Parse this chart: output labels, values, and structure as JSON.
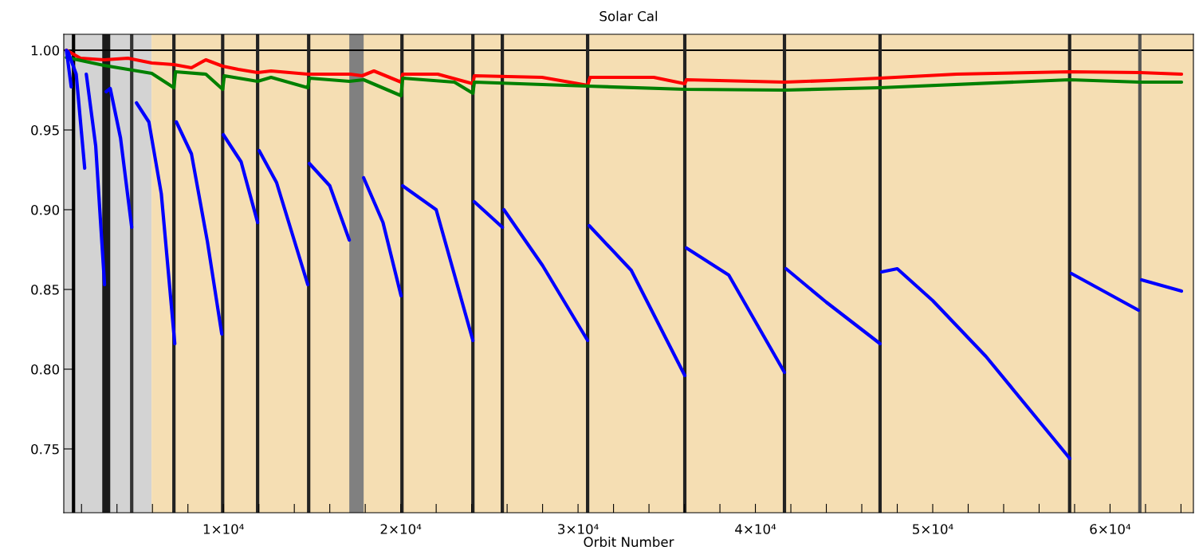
{
  "chart_data": {
    "type": "line",
    "title": "Solar Cal",
    "xlabel": "Orbit Number",
    "xlim": [
      1000,
      64700
    ],
    "ylim": [
      0.71,
      1.01
    ],
    "xticks": [
      {
        "value": 2000,
        "label": null
      },
      {
        "value": 4000,
        "label": null
      },
      {
        "value": 6000,
        "label": null
      },
      {
        "value": 8000,
        "label": null
      },
      {
        "value": 10000,
        "label": "1×10⁴"
      },
      {
        "value": 12000,
        "label": null
      },
      {
        "value": 14000,
        "label": null
      },
      {
        "value": 16000,
        "label": null
      },
      {
        "value": 18000,
        "label": null
      },
      {
        "value": 20000,
        "label": "2×10⁴"
      },
      {
        "value": 22000,
        "label": null
      },
      {
        "value": 24000,
        "label": null
      },
      {
        "value": 26000,
        "label": null
      },
      {
        "value": 28000,
        "label": null
      },
      {
        "value": 30000,
        "label": "3×10⁴"
      },
      {
        "value": 32000,
        "label": null
      },
      {
        "value": 34000,
        "label": null
      },
      {
        "value": 36000,
        "label": null
      },
      {
        "value": 38000,
        "label": null
      },
      {
        "value": 40000,
        "label": "4×10⁴"
      },
      {
        "value": 42000,
        "label": null
      },
      {
        "value": 44000,
        "label": null
      },
      {
        "value": 46000,
        "label": null
      },
      {
        "value": 48000,
        "label": null
      },
      {
        "value": 50000,
        "label": "5×10⁴"
      },
      {
        "value": 52000,
        "label": null
      },
      {
        "value": 54000,
        "label": null
      },
      {
        "value": 56000,
        "label": null
      },
      {
        "value": 58000,
        "label": null
      },
      {
        "value": 60000,
        "label": "6×10⁴"
      },
      {
        "value": 62000,
        "label": null
      },
      {
        "value": 64000,
        "label": null
      }
    ],
    "yticks": [
      {
        "value": 0.75,
        "label": "0.75"
      },
      {
        "value": 0.8,
        "label": "0.80"
      },
      {
        "value": 0.85,
        "label": "0.85"
      },
      {
        "value": 0.9,
        "label": "0.90"
      },
      {
        "value": 0.95,
        "label": "0.95"
      },
      {
        "value": 1.0,
        "label": "1.00"
      }
    ],
    "grid": false,
    "legend": false,
    "bands": [
      {
        "axis": "x",
        "from": 1000,
        "to": 5950,
        "color": "#d3d3d3"
      },
      {
        "axis": "x",
        "from": 5950,
        "to": 64700,
        "color": "#f5deb3"
      },
      {
        "axis": "x",
        "from": 3170,
        "to": 3620,
        "color": "#1a1a1a"
      },
      {
        "axis": "x",
        "from": 17100,
        "to": 17910,
        "color": "#808080"
      }
    ],
    "ref_lines": [
      {
        "axis": "y",
        "value": 1.0,
        "color": "#000000"
      },
      {
        "axis": "x",
        "value": 1550,
        "color": "#000000"
      },
      {
        "axis": "x",
        "value": 4830,
        "color": "#333333"
      },
      {
        "axis": "x",
        "value": 7210,
        "color": "#222222"
      },
      {
        "axis": "x",
        "value": 9960,
        "color": "#222222"
      },
      {
        "axis": "x",
        "value": 11930,
        "color": "#222222"
      },
      {
        "axis": "x",
        "value": 14810,
        "color": "#222222"
      },
      {
        "axis": "x",
        "value": 20070,
        "color": "#222222"
      },
      {
        "axis": "x",
        "value": 24070,
        "color": "#222222"
      },
      {
        "axis": "x",
        "value": 25730,
        "color": "#222222"
      },
      {
        "axis": "x",
        "value": 30540,
        "color": "#222222"
      },
      {
        "axis": "x",
        "value": 36020,
        "color": "#222222"
      },
      {
        "axis": "x",
        "value": 41640,
        "color": "#222222"
      },
      {
        "axis": "x",
        "value": 47030,
        "color": "#222222"
      },
      {
        "axis": "x",
        "value": 57720,
        "color": "#222222"
      },
      {
        "axis": "x",
        "value": 61680,
        "color": "#555555"
      }
    ],
    "series": [
      {
        "color": "#ff0000",
        "x": [
          1150,
          1940,
          3280,
          4620,
          5960,
          7210,
          8200,
          9010,
          9960,
          10840,
          11930,
          12690,
          14760,
          17150,
          17820,
          18490,
          20020,
          20110,
          22090,
          24070,
          24150,
          27970,
          30540,
          30680,
          34270,
          36020,
          36110,
          41640,
          44160,
          47030,
          51340,
          57720,
          61680,
          64030
        ],
        "values": [
          1.0,
          0.995,
          0.994,
          0.995,
          0.992,
          0.991,
          0.989,
          0.994,
          0.99,
          0.988,
          0.986,
          0.987,
          0.985,
          0.985,
          0.984,
          0.987,
          0.98,
          0.985,
          0.985,
          0.979,
          0.984,
          0.983,
          0.978,
          0.983,
          0.983,
          0.979,
          0.9815,
          0.98,
          0.981,
          0.9825,
          0.985,
          0.9865,
          0.986,
          0.985
        ]
      },
      {
        "color": "#008000",
        "x": [
          1150,
          3260,
          5960,
          7210,
          7300,
          9010,
          9960,
          10050,
          11930,
          12690,
          14760,
          14850,
          17100,
          17910,
          20020,
          20110,
          23030,
          24070,
          24150,
          30540,
          36020,
          41640,
          47030,
          57720,
          61680,
          64030
        ],
        "values": [
          0.9955,
          0.9905,
          0.9855,
          0.9765,
          0.9865,
          0.985,
          0.9755,
          0.984,
          0.9805,
          0.983,
          0.9765,
          0.9825,
          0.9805,
          0.9815,
          0.9715,
          0.9825,
          0.98,
          0.973,
          0.98,
          0.9775,
          0.9755,
          0.975,
          0.9765,
          0.9815,
          0.98,
          0.98
        ]
      },
      {
        "color": "#0000ff",
        "x": [
          1150,
          1420
        ],
        "values": [
          1.0,
          0.977
        ]
      },
      {
        "color": "#0000ff",
        "x": [
          1240,
          1700,
          2180
        ],
        "values": [
          0.999,
          0.985,
          0.926
        ]
      },
      {
        "color": "#0000ff",
        "x": [
          2270,
          2800,
          3300
        ],
        "values": [
          0.985,
          0.94,
          0.853
        ]
      },
      {
        "color": "#0000ff",
        "x": [
          3390,
          3620,
          4200,
          4830
        ],
        "values": [
          0.974,
          0.976,
          0.945,
          0.889
        ]
      },
      {
        "color": "#0000ff",
        "x": [
          5100,
          5800,
          6500,
          7260
        ],
        "values": [
          0.967,
          0.955,
          0.91,
          0.816
        ]
      },
      {
        "color": "#0000ff",
        "x": [
          7350,
          8200,
          9100,
          9910
        ],
        "values": [
          0.955,
          0.935,
          0.88,
          0.822
        ]
      },
      {
        "color": "#0000ff",
        "x": [
          10000,
          11000,
          11930
        ],
        "values": [
          0.947,
          0.93,
          0.892
        ]
      },
      {
        "color": "#0000ff",
        "x": [
          12020,
          13000,
          14760
        ],
        "values": [
          0.937,
          0.917,
          0.853
        ]
      },
      {
        "color": "#0000ff",
        "x": [
          14850,
          16000,
          17100
        ],
        "values": [
          0.929,
          0.915,
          0.881
        ]
      },
      {
        "color": "#0000ff",
        "x": [
          17910,
          19000,
          20020
        ],
        "values": [
          0.92,
          0.892,
          0.846
        ]
      },
      {
        "color": "#0000ff",
        "x": [
          20110,
          22000,
          24070
        ],
        "values": [
          0.915,
          0.9,
          0.818
        ]
      },
      {
        "color": "#0000ff",
        "x": [
          24150,
          25730
        ],
        "values": [
          0.905,
          0.889
        ]
      },
      {
        "color": "#0000ff",
        "x": [
          25820,
          28000,
          30540
        ],
        "values": [
          0.9,
          0.865,
          0.818
        ]
      },
      {
        "color": "#0000ff",
        "x": [
          30630,
          33000,
          36020
        ],
        "values": [
          0.89,
          0.862,
          0.796
        ]
      },
      {
        "color": "#0000ff",
        "x": [
          36110,
          38500,
          41640
        ],
        "values": [
          0.876,
          0.859,
          0.798
        ]
      },
      {
        "color": "#0000ff",
        "x": [
          41730,
          44000,
          47030
        ],
        "values": [
          0.863,
          0.842,
          0.816
        ]
      },
      {
        "color": "#0000ff",
        "x": [
          47120,
          48000,
          50000,
          53000,
          57730
        ],
        "values": [
          0.861,
          0.863,
          0.843,
          0.808,
          0.744
        ]
      },
      {
        "color": "#0000ff",
        "x": [
          57820,
          61600
        ],
        "values": [
          0.86,
          0.837
        ]
      },
      {
        "color": "#0000ff",
        "x": [
          61780,
          64030
        ],
        "values": [
          0.856,
          0.849
        ]
      }
    ]
  }
}
